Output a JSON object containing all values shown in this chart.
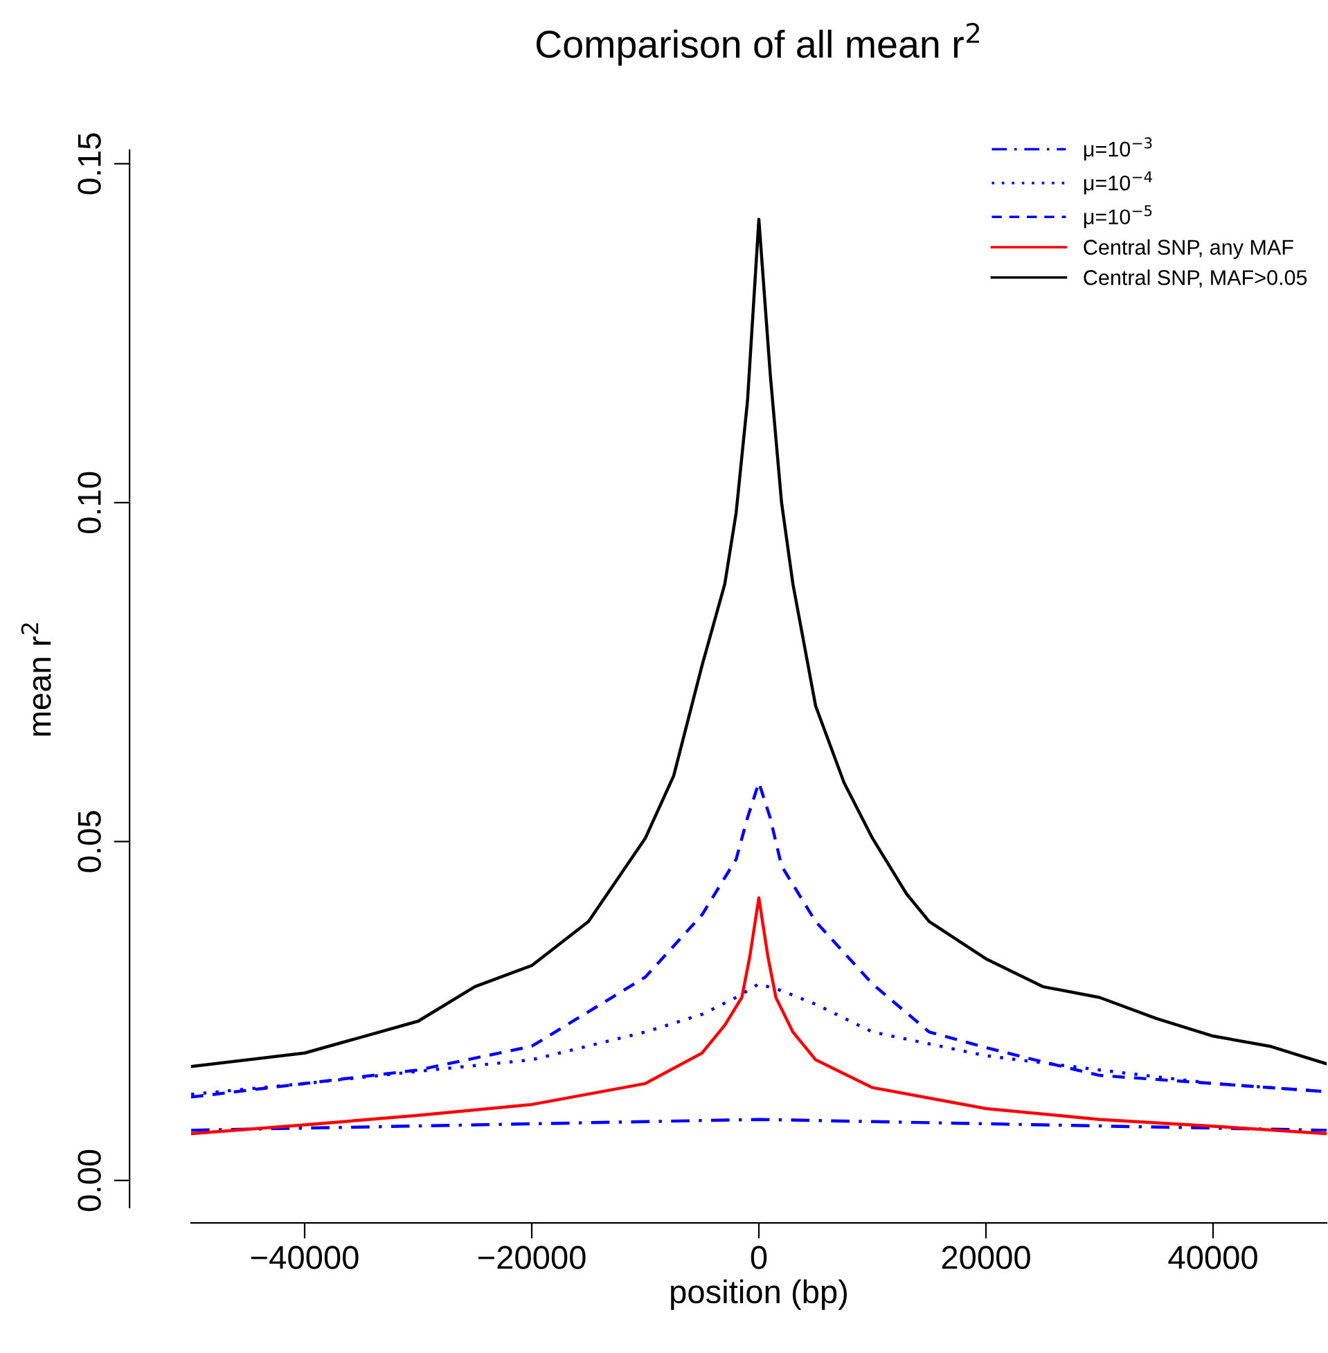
{
  "chart_data": {
    "type": "line",
    "title": "Comparison of all mean r$^{2}$",
    "xlabel": "position (bp)",
    "ylabel": "mean r$^{2}$",
    "xlim": [
      -50000,
      50000
    ],
    "ylim": [
      -0.004,
      0.152
    ],
    "xticks": [
      {
        "value": -40000,
        "label": "−40000"
      },
      {
        "value": -20000,
        "label": "−20000"
      },
      0,
      20000,
      40000
    ],
    "yticks": [
      {
        "value": 0,
        "label": "0.00"
      },
      {
        "value": 0.05,
        "label": "0.05"
      },
      {
        "value": 0.1,
        "label": "0.10"
      },
      {
        "value": 0.15,
        "label": "0.15"
      }
    ],
    "grid": false,
    "legend": "top right",
    "marker": "none",
    "series": [
      {
        "name": "μ=10$^{−3}$",
        "color": "#0000ff",
        "line_style": "dashdot",
        "x": [
          -50000,
          -25000,
          0,
          25000,
          50000
        ],
        "values": [
          0.0074,
          0.0082,
          0.009,
          0.0082,
          0.0074
        ]
      },
      {
        "name": "μ=10$^{−4}$",
        "color": "#0000ff",
        "line_style": "dotted",
        "x": [
          -50000,
          -40000,
          -30000,
          -20000,
          -10000,
          -5000,
          -2000,
          0,
          2000,
          5000,
          10000,
          20000,
          30000,
          40000,
          50000
        ],
        "values": [
          0.0127,
          0.0143,
          0.0161,
          0.0178,
          0.0219,
          0.0245,
          0.027,
          0.029,
          0.028,
          0.026,
          0.0219,
          0.0184,
          0.0163,
          0.0143,
          0.0131
        ]
      },
      {
        "name": "μ=10$^{−5}$",
        "color": "#0000ff",
        "line_style": "dashed",
        "x": [
          -50000,
          -40000,
          -30000,
          -20000,
          -15000,
          -10000,
          -5000,
          -2000,
          -1000,
          0,
          1000,
          2000,
          5000,
          10000,
          15000,
          20000,
          25000,
          30000,
          40000,
          50000
        ],
        "values": [
          0.0123,
          0.0143,
          0.0163,
          0.0198,
          0.0249,
          0.03,
          0.0392,
          0.0474,
          0.0535,
          0.0587,
          0.0535,
          0.0464,
          0.0382,
          0.029,
          0.0219,
          0.0196,
          0.0175,
          0.0155,
          0.0143,
          0.0131
        ]
      },
      {
        "name": "Central SNP, any MAF",
        "color": "#ff0000",
        "line_style": "solid",
        "x": [
          -50000,
          -40000,
          -30000,
          -20000,
          -10000,
          -5000,
          -3000,
          -1500,
          -800,
          0,
          800,
          1500,
          3000,
          5000,
          10000,
          20000,
          30000,
          40000,
          50000
        ],
        "values": [
          0.0069,
          0.0082,
          0.0096,
          0.0112,
          0.0143,
          0.0188,
          0.0229,
          0.027,
          0.033,
          0.0417,
          0.033,
          0.027,
          0.0219,
          0.0178,
          0.0137,
          0.0106,
          0.009,
          0.008,
          0.0069
        ]
      },
      {
        "name": "Central SNP, MAF>0.05",
        "color": "#000000",
        "line_style": "solid",
        "x": [
          -50000,
          -40000,
          -30000,
          -25000,
          -20000,
          -15000,
          -10000,
          -7500,
          -5000,
          -3000,
          -2000,
          -1000,
          0,
          1000,
          2000,
          3000,
          5000,
          7500,
          10000,
          13000,
          15000,
          20000,
          25000,
          30000,
          35000,
          40000,
          45000,
          50000
        ],
        "values": [
          0.0168,
          0.0188,
          0.0235,
          0.0286,
          0.0317,
          0.0382,
          0.0505,
          0.0597,
          0.076,
          0.088,
          0.0985,
          0.115,
          0.1418,
          0.119,
          0.1,
          0.088,
          0.07,
          0.0587,
          0.0505,
          0.0423,
          0.0382,
          0.0327,
          0.0286,
          0.027,
          0.0239,
          0.0213,
          0.0198,
          0.0172
        ]
      }
    ]
  }
}
